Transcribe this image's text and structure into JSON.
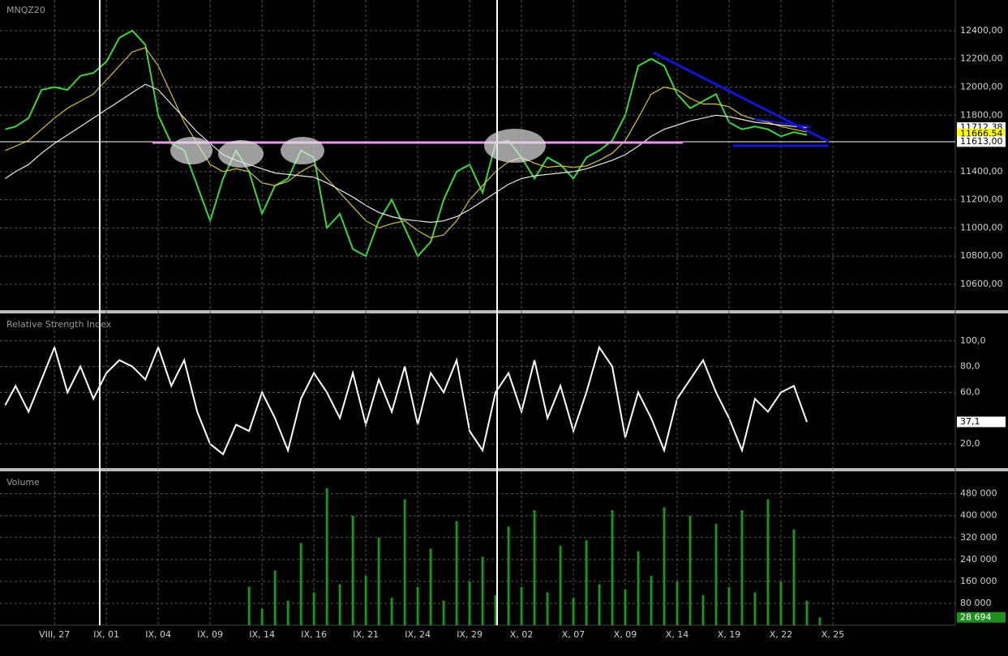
{
  "chart_data": [
    {
      "type": "line",
      "title": "MNQZ20",
      "x": [
        -0.95,
        -0.75,
        -0.5,
        -0.25,
        0,
        0.25,
        0.5,
        0.75,
        1,
        1.25,
        1.5,
        1.75,
        2,
        2.25,
        2.5,
        2.75,
        3,
        3.25,
        3.5,
        3.75,
        4,
        4.25,
        4.5,
        4.75,
        5,
        5.25,
        5.5,
        5.75,
        6,
        6.25,
        6.5,
        6.75,
        7,
        7.25,
        7.5,
        7.75,
        8,
        8.25,
        8.5,
        8.75,
        9,
        9.25,
        9.5,
        9.75,
        10,
        10.25,
        10.5,
        10.75,
        11,
        11.25,
        11.5,
        11.75,
        12,
        12.25,
        12.5,
        12.75,
        13,
        13.25,
        13.5,
        13.75,
        14,
        14.25,
        14.5
      ],
      "xlim": [
        -1.05,
        17.36
      ],
      "ylim": [
        10416,
        12618
      ],
      "yticks": [
        {
          "value": 10600,
          "label": "10600,00"
        },
        {
          "value": 10800,
          "label": "10800,00"
        },
        {
          "value": 11000,
          "label": "11000,00"
        },
        {
          "value": 11200,
          "label": "11200,00"
        },
        {
          "value": 11400,
          "label": "11400,00"
        },
        {
          "value": 11800,
          "label": "11800,00"
        },
        {
          "value": 12000,
          "label": "12000,00"
        },
        {
          "value": 12200,
          "label": "12200,00"
        },
        {
          "value": 12400,
          "label": "12400,00"
        }
      ],
      "grid": true,
      "series": [
        {
          "color": "#3fd43f",
          "values": [
            11700,
            11720,
            11780,
            11980,
            12000,
            11980,
            12080,
            12100,
            12180,
            12350,
            12400,
            12300,
            11800,
            11600,
            11550,
            11300,
            11050,
            11350,
            11550,
            11400,
            11100,
            11300,
            11350,
            11550,
            11500,
            11000,
            11100,
            10850,
            10800,
            11050,
            11200,
            11000,
            10800,
            10900,
            11200,
            11400,
            11450,
            11250,
            11600,
            11620,
            11500,
            11350,
            11500,
            11450,
            11350,
            11500,
            11550,
            11620,
            11800,
            12150,
            12200,
            12150,
            11950,
            11850,
            11900,
            11950,
            11750,
            11700,
            11720,
            11700,
            11650,
            11680,
            11660
          ]
        },
        {
          "color": "#d8c23a",
          "values": [
            11550,
            11580,
            11620,
            11700,
            11780,
            11850,
            11900,
            11950,
            12050,
            12150,
            12250,
            12280,
            12150,
            11950,
            11750,
            11600,
            11450,
            11400,
            11420,
            11400,
            11320,
            11300,
            11330,
            11400,
            11450,
            11350,
            11250,
            11150,
            11050,
            11000,
            11030,
            11050,
            10980,
            10930,
            10950,
            11050,
            11200,
            11300,
            11400,
            11470,
            11500,
            11460,
            11430,
            11440,
            11430,
            11440,
            11480,
            11530,
            11620,
            11780,
            11950,
            12000,
            11980,
            11920,
            11880,
            11880,
            11860,
            11800,
            11770,
            11750,
            11720,
            11700,
            11680
          ]
        },
        {
          "color": "#e8e8e8",
          "values": [
            11350,
            11400,
            11450,
            11530,
            11600,
            11660,
            11720,
            11780,
            11840,
            11900,
            11960,
            12020,
            11980,
            11880,
            11780,
            11680,
            11600,
            11520,
            11480,
            11450,
            11420,
            11390,
            11380,
            11370,
            11360,
            11320,
            11270,
            11220,
            11160,
            11110,
            11080,
            11060,
            11050,
            11040,
            11050,
            11080,
            11130,
            11190,
            11250,
            11310,
            11350,
            11370,
            11380,
            11390,
            11400,
            11420,
            11450,
            11480,
            11520,
            11580,
            11650,
            11700,
            11730,
            11760,
            11780,
            11800,
            11790,
            11770,
            11750,
            11740,
            11730,
            11720,
            11712
          ]
        }
      ],
      "markers": [
        {
          "value": 11712.38,
          "label": "11712,38",
          "color": "#ffffff"
        },
        {
          "value": 11666.54,
          "label": "11666,54",
          "color": "#ffff00"
        },
        {
          "value": 11613,
          "label": "11613,00",
          "color": "#ffffff"
        }
      ]
    },
    {
      "type": "line",
      "title": "Relative Strength Index",
      "x": [
        -0.95,
        -0.75,
        -0.5,
        -0.25,
        0,
        0.25,
        0.5,
        0.75,
        1,
        1.25,
        1.5,
        1.75,
        2,
        2.25,
        2.5,
        2.75,
        3,
        3.25,
        3.5,
        3.75,
        4,
        4.25,
        4.5,
        4.75,
        5,
        5.25,
        5.5,
        5.75,
        6,
        6.25,
        6.5,
        6.75,
        7,
        7.25,
        7.5,
        7.75,
        8,
        8.25,
        8.5,
        8.75,
        9,
        9.25,
        9.5,
        9.75,
        10,
        10.25,
        10.5,
        10.75,
        11,
        11.25,
        11.5,
        11.75,
        12,
        12.25,
        12.5,
        12.75,
        13,
        13.25,
        13.5,
        13.75,
        14,
        14.25,
        14.5
      ],
      "xlim": [
        -1.05,
        17.36
      ],
      "ylim": [
        1.25,
        120.6
      ],
      "yticks": [
        {
          "value": 20,
          "label": "20,0"
        },
        {
          "value": 60,
          "label": "60,0"
        },
        {
          "value": 80,
          "label": "80,0"
        },
        {
          "value": 100,
          "label": "100,0"
        }
      ],
      "grid": true,
      "series": [
        {
          "color": "#ffffff",
          "values": [
            50,
            65,
            45,
            70,
            95,
            60,
            80,
            55,
            75,
            85,
            80,
            70,
            95,
            65,
            85,
            45,
            20,
            12,
            35,
            30,
            60,
            40,
            15,
            55,
            75,
            60,
            40,
            75,
            35,
            70,
            45,
            80,
            35,
            75,
            60,
            85,
            30,
            15,
            60,
            75,
            45,
            85,
            40,
            65,
            30,
            60,
            95,
            80,
            25,
            60,
            40,
            15,
            55,
            70,
            85,
            60,
            40,
            15,
            55,
            45,
            60,
            65,
            37.1
          ]
        }
      ],
      "markers": [
        {
          "value": 37.1,
          "label": "37,1",
          "color": "#ffffff"
        }
      ]
    },
    {
      "type": "bar",
      "title": "Volume",
      "x": [
        3.75,
        4,
        4.25,
        4.5,
        4.75,
        5,
        5.25,
        5.5,
        5.75,
        6,
        6.25,
        6.5,
        6.75,
        7,
        7.25,
        7.5,
        7.75,
        8,
        8.25,
        8.5,
        8.75,
        9,
        9.25,
        9.5,
        9.75,
        10,
        10.25,
        10.5,
        10.75,
        11,
        11.25,
        11.5,
        11.75,
        12,
        12.25,
        12.5,
        12.75,
        13,
        13.25,
        13.5,
        13.75,
        14,
        14.25,
        14.5,
        14.75
      ],
      "xlim": [
        -1.05,
        17.36
      ],
      "ylim": [
        0,
        558800
      ],
      "yticks": [
        {
          "value": 80000,
          "label": "80 000"
        },
        {
          "value": 160000,
          "label": "160 000"
        },
        {
          "value": 240000,
          "label": "240 000"
        },
        {
          "value": 320000,
          "label": "320 000"
        },
        {
          "value": 400000,
          "label": "400 000"
        },
        {
          "value": 480000,
          "label": "480 000"
        }
      ],
      "xticks": [
        {
          "value": 0,
          "label": "VIII, 27"
        },
        {
          "value": 1,
          "label": "IX, 01"
        },
        {
          "value": 2,
          "label": "IX, 04"
        },
        {
          "value": 3,
          "label": "IX, 09"
        },
        {
          "value": 4,
          "label": "IX, 14"
        },
        {
          "value": 5,
          "label": "IX, 16"
        },
        {
          "value": 6,
          "label": "IX, 21"
        },
        {
          "value": 7,
          "label": "IX, 24"
        },
        {
          "value": 8,
          "label": "IX, 29"
        },
        {
          "value": 9,
          "label": "X, 02"
        },
        {
          "value": 10,
          "label": "X, 07"
        },
        {
          "value": 11,
          "label": "X, 09"
        },
        {
          "value": 12,
          "label": "X, 14"
        },
        {
          "value": 13,
          "label": "X, 19"
        },
        {
          "value": 14,
          "label": "X, 22"
        },
        {
          "value": 15,
          "label": "X, 25"
        }
      ],
      "grid": true,
      "color": "#1f8f1f",
      "values": [
        140000,
        60000,
        200000,
        90000,
        300000,
        120000,
        500000,
        150000,
        400000,
        180000,
        320000,
        100000,
        460000,
        140000,
        280000,
        90000,
        380000,
        160000,
        250000,
        110000,
        360000,
        140000,
        420000,
        120000,
        290000,
        100000,
        310000,
        150000,
        420000,
        130000,
        270000,
        180000,
        430000,
        160000,
        400000,
        110000,
        370000,
        140000,
        420000,
        120000,
        460000,
        160000,
        350000,
        90000,
        28694
      ],
      "markers": [
        {
          "value": 28694,
          "label": "28 694",
          "color": "#1f8f1f"
        }
      ]
    }
  ]
}
